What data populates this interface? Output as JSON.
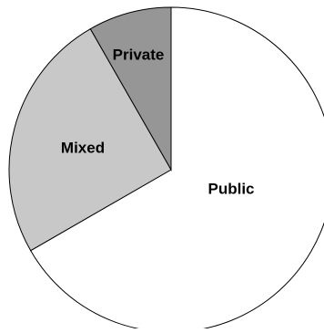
{
  "chart_data": {
    "type": "pie",
    "title": "",
    "start": "top",
    "direction": "clockwise",
    "slices": [
      {
        "label": "Public",
        "value": 66.7,
        "color": "#ffffff"
      },
      {
        "label": "Mixed",
        "value": 25.0,
        "color": "#c8c8c8"
      },
      {
        "label": "Private",
        "value": 8.3,
        "color": "#969696"
      }
    ],
    "stroke_color": "#000000",
    "legend": "none"
  }
}
